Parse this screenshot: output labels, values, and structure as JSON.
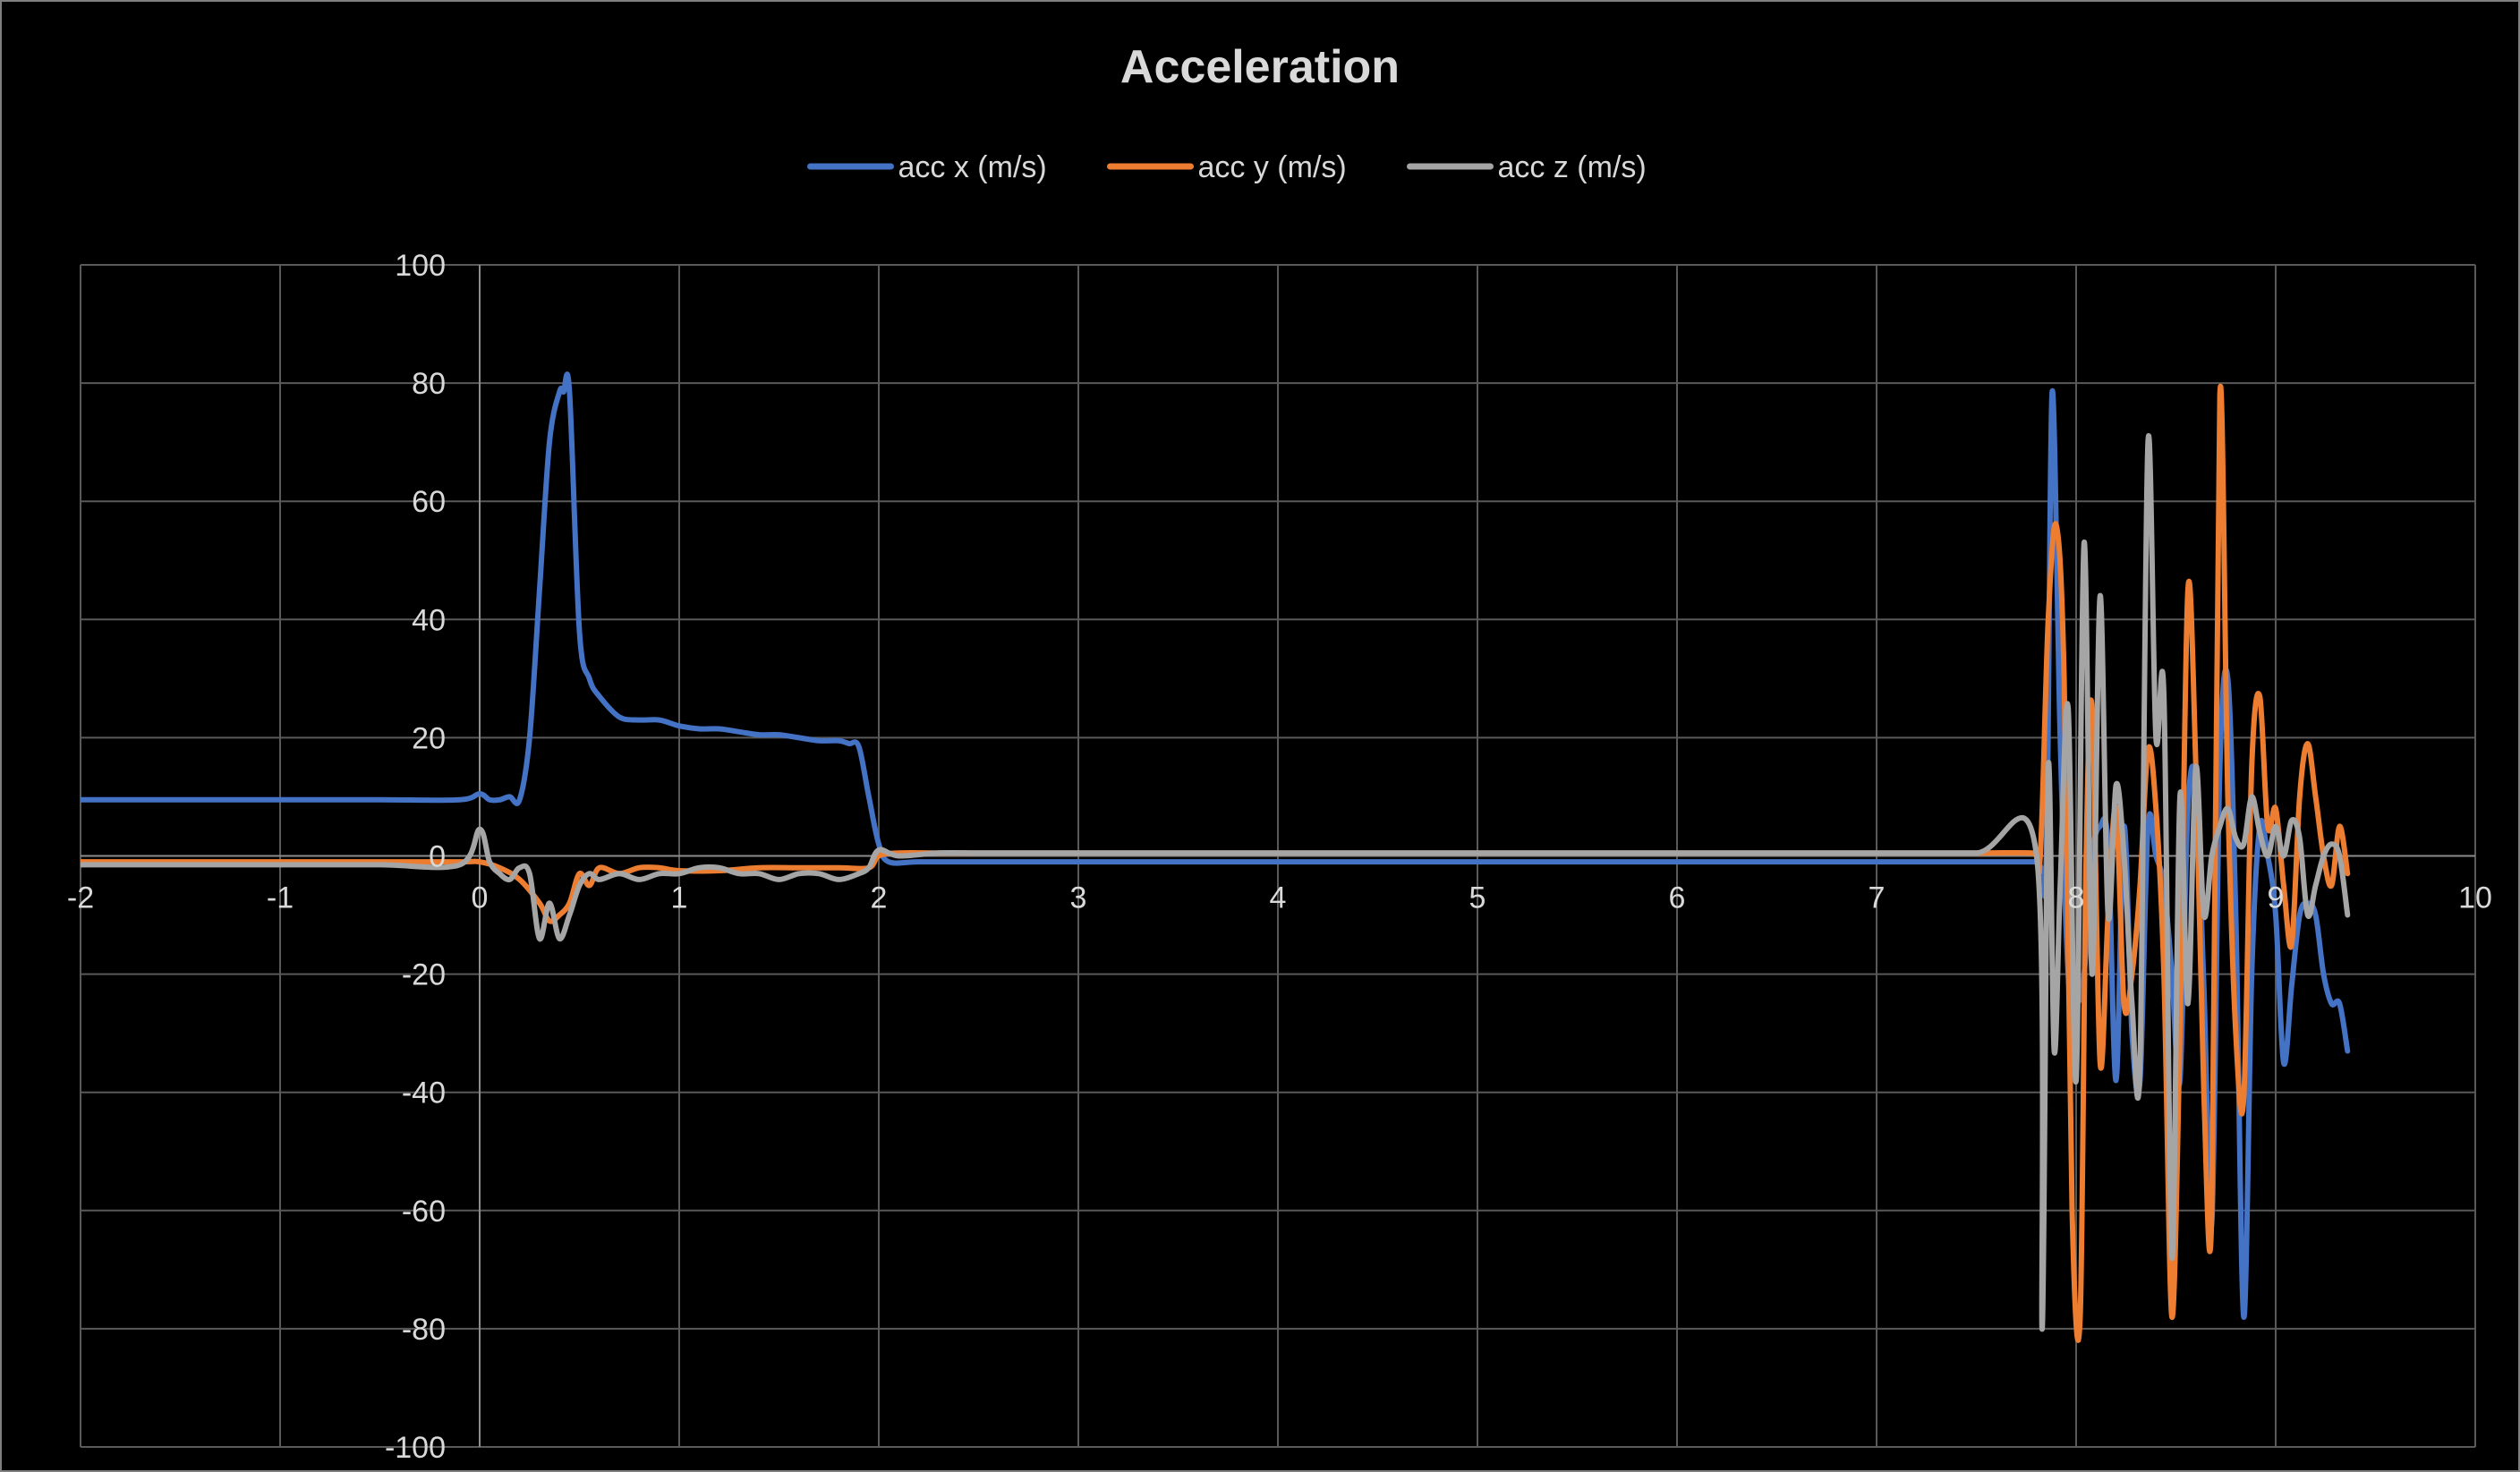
{
  "chart_data": {
    "type": "scatter",
    "title": "Acceleration",
    "xlabel": "",
    "ylabel": "",
    "xlim": [
      -2,
      10
    ],
    "ylim": [
      -100,
      100
    ],
    "xticks": [
      -2,
      -1,
      0,
      1,
      2,
      3,
      4,
      5,
      6,
      7,
      8,
      9,
      10
    ],
    "yticks": [
      100,
      80,
      60,
      40,
      20,
      0,
      -20,
      -40,
      -60,
      -80,
      -100
    ],
    "grid": true,
    "legend": "top-center",
    "style": "smoothed lines, no markers",
    "series": [
      {
        "name": "acc x (m/s)",
        "color": "#4472c4",
        "x": [
          -2.0,
          -1.5,
          -1.0,
          -0.5,
          -0.1,
          0.0,
          0.05,
          0.1,
          0.15,
          0.2,
          0.25,
          0.3,
          0.35,
          0.4,
          0.42,
          0.45,
          0.5,
          0.55,
          0.6,
          0.7,
          0.8,
          0.9,
          1.0,
          1.1,
          1.2,
          1.3,
          1.4,
          1.5,
          1.6,
          1.7,
          1.8,
          1.85,
          1.9,
          1.95,
          2.0,
          2.05,
          2.2,
          2.5,
          3.0,
          3.5,
          4.0,
          4.5,
          5.0,
          5.5,
          6.0,
          6.5,
          7.0,
          7.5,
          7.8,
          7.85,
          7.88,
          7.92,
          7.96,
          8.0,
          8.04,
          8.08,
          8.12,
          8.16,
          8.2,
          8.24,
          8.28,
          8.32,
          8.36,
          8.4,
          8.44,
          8.48,
          8.52,
          8.56,
          8.6,
          8.64,
          8.68,
          8.72,
          8.76,
          8.8,
          8.84,
          8.88,
          8.92,
          8.96,
          9.0,
          9.04,
          9.08,
          9.12,
          9.16,
          9.2,
          9.24,
          9.28,
          9.32,
          9.36
        ],
        "y": [
          9.5,
          9.5,
          9.5,
          9.5,
          9.5,
          10.5,
          9.5,
          9.5,
          10,
          9.5,
          20,
          45,
          70,
          78.5,
          78.5,
          78.5,
          38,
          30,
          27,
          23.5,
          23,
          23,
          22,
          21.5,
          21.5,
          21,
          20.5,
          20.5,
          20,
          19.5,
          19.5,
          19,
          18.5,
          10,
          2,
          -1,
          -1,
          -1,
          -1,
          -1,
          -1,
          -1,
          -1,
          -1,
          -1,
          -1,
          -1,
          -1,
          -1,
          -1,
          78.5,
          20,
          -20,
          -25,
          -20,
          0,
          5,
          2,
          -38,
          5,
          -30,
          -38,
          5,
          0,
          -5,
          -20,
          -38,
          8,
          12,
          -22,
          -62,
          15,
          30,
          -10,
          -78,
          -20,
          5,
          0,
          -10,
          -35,
          -22,
          -10,
          -8,
          -10,
          -20,
          -25,
          -25,
          -33
        ]
      },
      {
        "name": "acc y (m/s)",
        "color": "#ed7d31",
        "x": [
          -2.0,
          -1.5,
          -1.0,
          -0.5,
          -0.1,
          0.0,
          0.1,
          0.2,
          0.3,
          0.35,
          0.4,
          0.45,
          0.5,
          0.55,
          0.6,
          0.7,
          0.8,
          0.9,
          1.0,
          1.2,
          1.4,
          1.6,
          1.8,
          1.95,
          2.0,
          2.1,
          2.3,
          2.5,
          3.0,
          3.5,
          4.0,
          4.5,
          5.0,
          5.5,
          6.0,
          6.5,
          7.0,
          7.5,
          7.78,
          7.82,
          7.86,
          7.9,
          7.94,
          7.98,
          8.02,
          8.05,
          8.08,
          8.12,
          8.16,
          8.2,
          8.24,
          8.28,
          8.32,
          8.36,
          8.4,
          8.44,
          8.48,
          8.52,
          8.56,
          8.6,
          8.64,
          8.68,
          8.72,
          8.76,
          8.8,
          8.84,
          8.88,
          8.92,
          8.96,
          9.0,
          9.04,
          9.08,
          9.12,
          9.16,
          9.2,
          9.24,
          9.28,
          9.32,
          9.36
        ],
        "y": [
          -1,
          -1,
          -1,
          -1,
          -1,
          -1,
          -2,
          -4,
          -8,
          -11,
          -10,
          -8,
          -3,
          -5,
          -2,
          -3,
          -2,
          -2,
          -2.5,
          -2.5,
          -2,
          -2,
          -2,
          -2,
          0,
          0.5,
          0.5,
          0.5,
          0.5,
          0.5,
          0.5,
          0.5,
          0.5,
          0.5,
          0.5,
          0.5,
          0.5,
          0.5,
          0.5,
          0,
          40,
          56,
          30,
          -60,
          -78,
          0,
          25,
          -35,
          -10,
          8,
          -25,
          -20,
          -5,
          18,
          8,
          -20,
          -78,
          -30,
          45,
          15,
          -40,
          -60,
          78,
          10,
          -30,
          -41,
          15,
          27,
          5,
          8,
          -5,
          -15,
          10,
          19,
          10,
          0,
          -5,
          5,
          -3
        ]
      },
      {
        "name": "acc z (m/s)",
        "color": "#a5a5a5",
        "x": [
          -2.0,
          -1.5,
          -1.0,
          -0.5,
          -0.1,
          0.0,
          0.05,
          0.1,
          0.15,
          0.2,
          0.25,
          0.3,
          0.35,
          0.4,
          0.45,
          0.5,
          0.55,
          0.6,
          0.7,
          0.8,
          0.9,
          1.0,
          1.1,
          1.2,
          1.3,
          1.4,
          1.5,
          1.6,
          1.7,
          1.8,
          1.9,
          1.95,
          2.0,
          2.1,
          2.3,
          2.5,
          2.7,
          3.0,
          3.5,
          4.0,
          4.5,
          5.0,
          5.5,
          6.0,
          6.5,
          7.0,
          7.5,
          7.8,
          7.83,
          7.86,
          7.89,
          7.92,
          7.96,
          8.0,
          8.04,
          8.08,
          8.12,
          8.16,
          8.2,
          8.24,
          8.28,
          8.32,
          8.36,
          8.4,
          8.44,
          8.48,
          8.52,
          8.56,
          8.6,
          8.64,
          8.68,
          8.72,
          8.76,
          8.8,
          8.84,
          8.88,
          8.92,
          8.96,
          9.0,
          9.04,
          9.08,
          9.12,
          9.16,
          9.2,
          9.24,
          9.28,
          9.32,
          9.36
        ],
        "y": [
          -1.5,
          -1.5,
          -1.5,
          -1.5,
          -1.5,
          4.5,
          -1,
          -3,
          -4,
          -2,
          -3,
          -14,
          -8,
          -14,
          -10,
          -5,
          -3,
          -4,
          -3,
          -4,
          -3,
          -3,
          -2,
          -2,
          -3,
          -3,
          -4,
          -3,
          -3,
          -4,
          -3,
          -2,
          1,
          0,
          0.5,
          0.5,
          0.5,
          0.5,
          0.5,
          0.5,
          0.5,
          0.5,
          0.5,
          0.5,
          0.5,
          0.5,
          0.5,
          0.5,
          -80,
          15,
          -33,
          -5,
          25,
          -38,
          53,
          -20,
          44,
          -10,
          12,
          0,
          -25,
          -35,
          70,
          20,
          27,
          -68,
          10,
          -25,
          15,
          -10,
          0,
          5,
          8,
          3,
          2,
          10,
          4,
          0,
          5,
          0,
          6,
          3,
          -10,
          -5,
          0,
          2,
          0,
          -10
        ]
      }
    ]
  }
}
